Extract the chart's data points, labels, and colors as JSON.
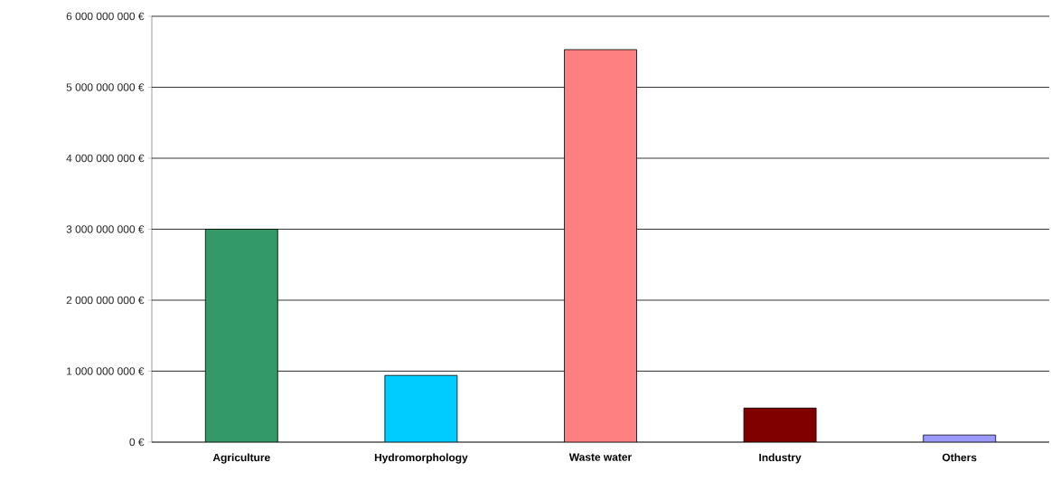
{
  "chart_data": {
    "type": "bar",
    "categories": [
      "Agriculture",
      "Hydromorphology",
      "Waste water",
      "Industry",
      "Others"
    ],
    "values": [
      3000000000,
      940000000,
      5530000000,
      480000000,
      100000000
    ],
    "colors": [
      "#339966",
      "#00ccff",
      "#ff8080",
      "#800000",
      "#9999ff"
    ],
    "ylim": [
      0,
      6000000000
    ],
    "yticks": [
      {
        "value": 0,
        "label": "0 €"
      },
      {
        "value": 1000000000,
        "label": "1 000 000 000 €"
      },
      {
        "value": 2000000000,
        "label": "2 000 000 000 €"
      },
      {
        "value": 3000000000,
        "label": "3 000 000 000 €"
      },
      {
        "value": 4000000000,
        "label": "4 000 000 000 €"
      },
      {
        "value": 5000000000,
        "label": "5 000 000 000 €"
      },
      {
        "value": 6000000000,
        "label": "6 000 000 000 €"
      }
    ],
    "grid": "y"
  }
}
